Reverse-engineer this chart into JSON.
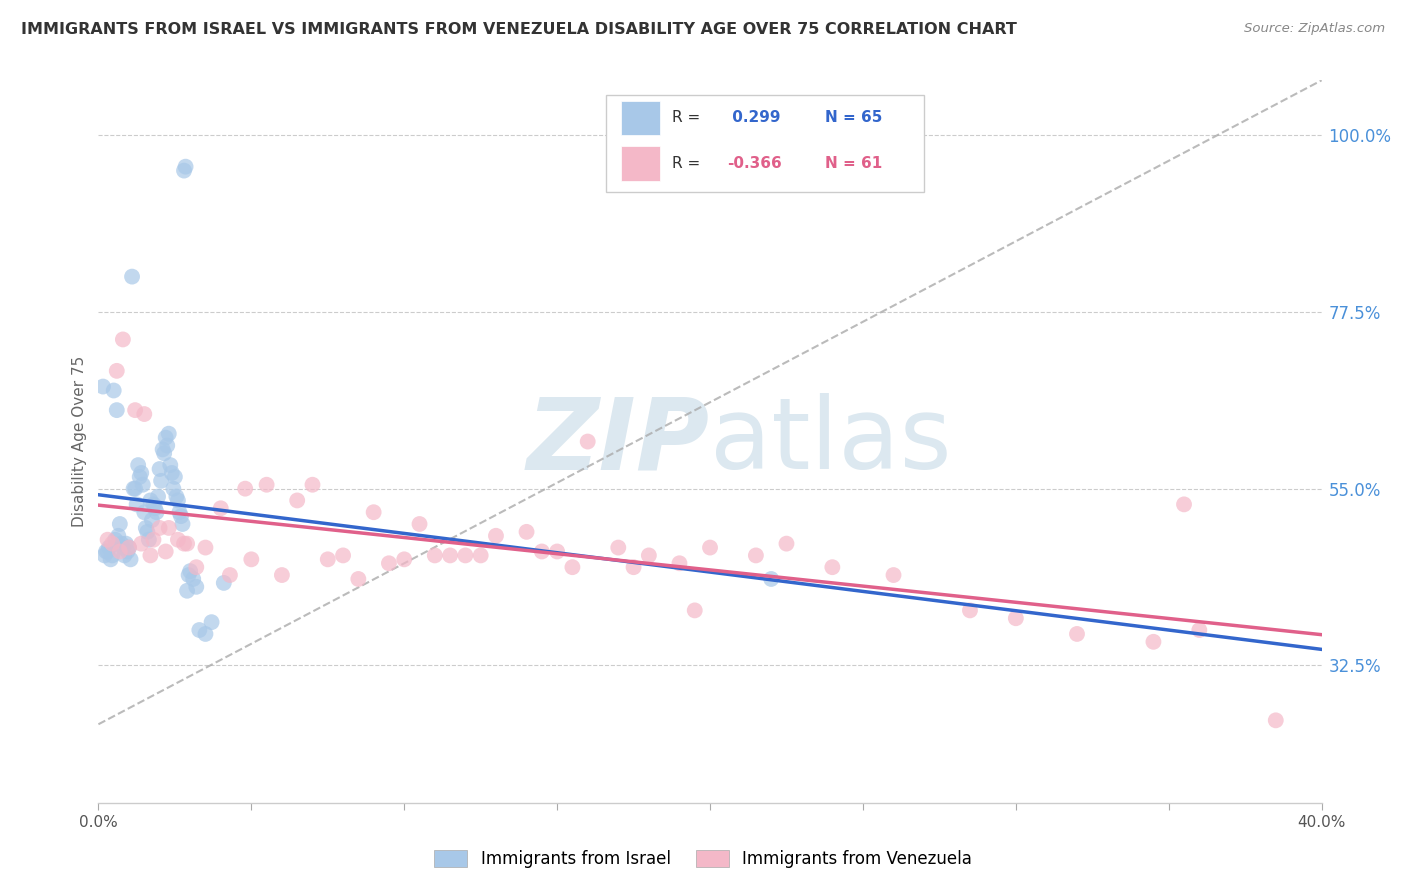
{
  "title": "IMMIGRANTS FROM ISRAEL VS IMMIGRANTS FROM VENEZUELA DISABILITY AGE OVER 75 CORRELATION CHART",
  "source": "Source: ZipAtlas.com",
  "ylabel": "Disability Age Over 75",
  "yticks": [
    32.5,
    55.0,
    77.5,
    100.0
  ],
  "xmin": 0.0,
  "xmax": 40.0,
  "ymin": 15.0,
  "ymax": 107.0,
  "legend_israel": "Immigrants from Israel",
  "legend_venezuela": "Immigrants from Venezuela",
  "R_israel": 0.299,
  "N_israel": 65,
  "R_venezuela": -0.366,
  "N_venezuela": 61,
  "israel_color": "#a8c8e8",
  "venezuela_color": "#f4b8c8",
  "israel_line_color": "#3366cc",
  "venezuela_line_color": "#e0608a",
  "background_color": "#ffffff",
  "watermark_color": "#dce8f0",
  "israel_x": [
    0.15,
    1.1,
    1.15,
    2.8,
    2.85,
    0.5,
    0.6,
    0.3,
    0.35,
    0.2,
    0.25,
    0.4,
    0.45,
    0.55,
    0.65,
    0.7,
    0.75,
    0.8,
    0.85,
    0.9,
    0.95,
    1.0,
    1.05,
    1.2,
    1.25,
    1.3,
    1.35,
    1.4,
    1.45,
    1.5,
    1.55,
    1.6,
    1.65,
    1.7,
    1.75,
    1.8,
    1.85,
    1.9,
    1.95,
    2.0,
    2.05,
    2.1,
    2.15,
    2.2,
    2.25,
    2.3,
    2.35,
    2.4,
    2.45,
    2.5,
    2.55,
    2.6,
    2.65,
    2.7,
    2.75,
    2.9,
    2.95,
    3.0,
    3.1,
    3.2,
    3.3,
    3.5,
    3.7,
    4.1,
    22.0
  ],
  "israel_y": [
    68.0,
    82.0,
    55.0,
    95.5,
    96.0,
    67.5,
    65.0,
    47.0,
    47.5,
    46.5,
    47.0,
    46.0,
    46.5,
    48.5,
    49.0,
    50.5,
    48.0,
    47.5,
    46.5,
    48.0,
    47.0,
    47.5,
    46.0,
    55.0,
    53.0,
    58.0,
    56.5,
    57.0,
    55.5,
    52.0,
    50.0,
    49.5,
    48.5,
    53.5,
    51.0,
    53.0,
    52.5,
    52.0,
    54.0,
    57.5,
    56.0,
    60.0,
    59.5,
    61.5,
    60.5,
    62.0,
    58.0,
    57.0,
    55.0,
    56.5,
    54.0,
    53.5,
    52.0,
    51.5,
    50.5,
    42.0,
    44.0,
    44.5,
    43.5,
    42.5,
    37.0,
    36.5,
    38.0,
    43.0,
    43.5
  ],
  "venezuela_x": [
    0.3,
    0.6,
    0.8,
    1.2,
    1.5,
    1.8,
    2.0,
    2.3,
    2.6,
    2.9,
    3.5,
    4.0,
    4.8,
    5.5,
    6.5,
    7.0,
    8.0,
    9.0,
    9.5,
    10.5,
    11.0,
    11.5,
    12.5,
    13.0,
    14.0,
    14.5,
    15.5,
    16.0,
    17.0,
    18.0,
    19.0,
    20.0,
    21.5,
    22.5,
    24.0,
    26.0,
    28.5,
    30.0,
    32.0,
    34.5,
    36.0,
    0.45,
    0.7,
    1.0,
    1.4,
    1.7,
    2.2,
    2.8,
    3.2,
    4.3,
    5.0,
    6.0,
    7.5,
    8.5,
    10.0,
    12.0,
    15.0,
    17.5,
    19.5,
    35.5,
    38.5
  ],
  "venezuela_y": [
    48.5,
    70.0,
    74.0,
    65.0,
    64.5,
    48.5,
    50.0,
    50.0,
    48.5,
    48.0,
    47.5,
    52.5,
    55.0,
    55.5,
    53.5,
    55.5,
    46.5,
    52.0,
    45.5,
    50.5,
    46.5,
    46.5,
    46.5,
    49.0,
    49.5,
    47.0,
    45.0,
    61.0,
    47.5,
    46.5,
    45.5,
    47.5,
    46.5,
    48.0,
    45.0,
    44.0,
    39.5,
    38.5,
    36.5,
    35.5,
    37.0,
    48.0,
    47.0,
    47.5,
    48.0,
    46.5,
    47.0,
    48.0,
    45.0,
    44.0,
    46.0,
    44.0,
    46.0,
    43.5,
    46.0,
    46.5,
    47.0,
    45.0,
    39.5,
    53.0,
    25.5
  ]
}
